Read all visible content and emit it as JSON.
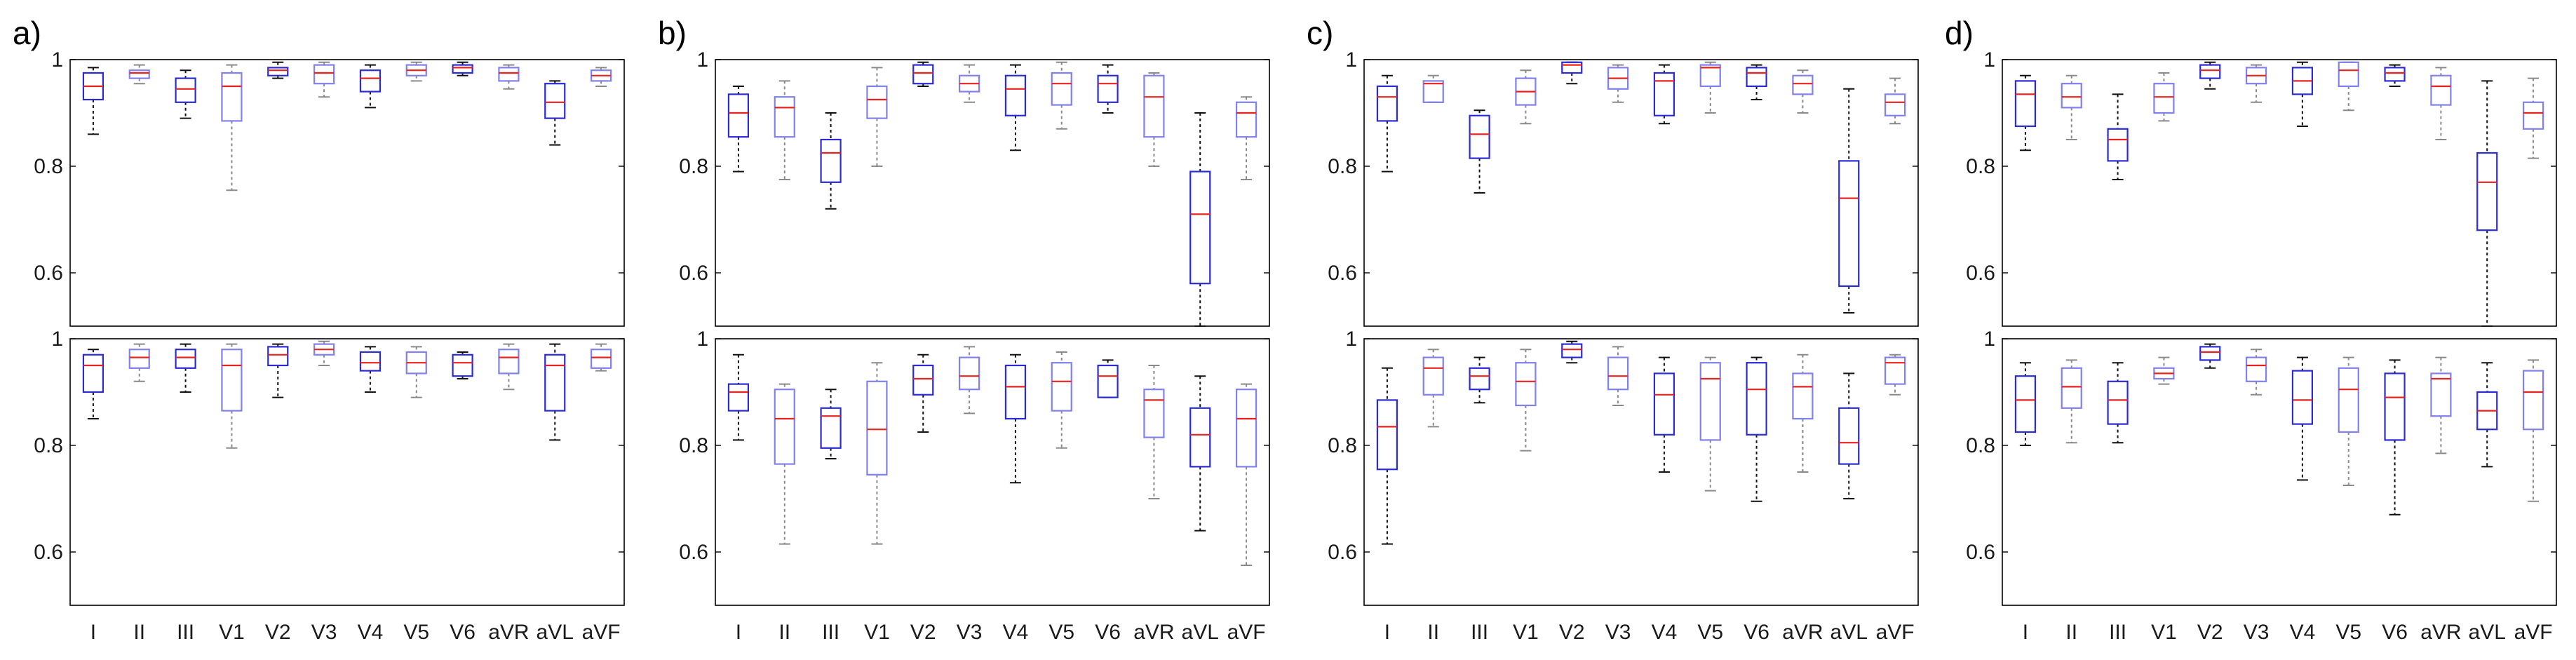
{
  "figure": {
    "categories": [
      "I",
      "II",
      "III",
      "V1",
      "V2",
      "V3",
      "V4",
      "V5",
      "V6",
      "aVR",
      "aVL",
      "aVF"
    ],
    "y_ticks": [
      0.6,
      0.8,
      1
    ],
    "y_tick_labels": [
      "0.6",
      "0.8",
      "1"
    ]
  },
  "chart_data": [
    {
      "type": "box",
      "panel_label": "a)",
      "subplot": "top",
      "categories": [
        "I",
        "II",
        "III",
        "V1",
        "V2",
        "V3",
        "V4",
        "V5",
        "V6",
        "aVR",
        "aVL",
        "aVF"
      ],
      "ylim": [
        0.5,
        1.0
      ],
      "yticks": [
        0.6,
        0.8,
        1
      ],
      "boxes": [
        {
          "min": 0.86,
          "q1": 0.925,
          "median": 0.95,
          "q3": 0.975,
          "max": 0.985
        },
        {
          "min": 0.955,
          "q1": 0.965,
          "median": 0.975,
          "q3": 0.98,
          "max": 0.99
        },
        {
          "min": 0.89,
          "q1": 0.92,
          "median": 0.945,
          "q3": 0.965,
          "max": 0.98
        },
        {
          "min": 0.755,
          "q1": 0.885,
          "median": 0.95,
          "q3": 0.975,
          "max": 0.99
        },
        {
          "min": 0.965,
          "q1": 0.97,
          "median": 0.98,
          "q3": 0.985,
          "max": 0.995
        },
        {
          "min": 0.93,
          "q1": 0.955,
          "median": 0.975,
          "q3": 0.99,
          "max": 0.995
        },
        {
          "min": 0.91,
          "q1": 0.94,
          "median": 0.965,
          "q3": 0.98,
          "max": 0.99
        },
        {
          "min": 0.96,
          "q1": 0.97,
          "median": 0.98,
          "q3": 0.99,
          "max": 0.995
        },
        {
          "min": 0.97,
          "q1": 0.975,
          "median": 0.985,
          "q3": 0.99,
          "max": 0.995
        },
        {
          "min": 0.945,
          "q1": 0.96,
          "median": 0.975,
          "q3": 0.985,
          "max": 0.99
        },
        {
          "min": 0.84,
          "q1": 0.89,
          "median": 0.92,
          "q3": 0.955,
          "max": 0.96
        },
        {
          "min": 0.95,
          "q1": 0.96,
          "median": 0.97,
          "q3": 0.98,
          "max": 0.985
        }
      ]
    },
    {
      "type": "box",
      "panel_label": "a)",
      "subplot": "bottom",
      "categories": [
        "I",
        "II",
        "III",
        "V1",
        "V2",
        "V3",
        "V4",
        "V5",
        "V6",
        "aVR",
        "aVL",
        "aVF"
      ],
      "ylim": [
        0.5,
        1.0
      ],
      "yticks": [
        0.6,
        0.8,
        1
      ],
      "boxes": [
        {
          "min": 0.85,
          "q1": 0.9,
          "median": 0.95,
          "q3": 0.97,
          "max": 0.98
        },
        {
          "min": 0.92,
          "q1": 0.945,
          "median": 0.965,
          "q3": 0.98,
          "max": 0.99
        },
        {
          "min": 0.9,
          "q1": 0.945,
          "median": 0.965,
          "q3": 0.98,
          "max": 0.99
        },
        {
          "min": 0.795,
          "q1": 0.865,
          "median": 0.95,
          "q3": 0.98,
          "max": 0.99
        },
        {
          "min": 0.89,
          "q1": 0.95,
          "median": 0.97,
          "q3": 0.985,
          "max": 0.99
        },
        {
          "min": 0.95,
          "q1": 0.97,
          "median": 0.98,
          "q3": 0.99,
          "max": 0.995
        },
        {
          "min": 0.9,
          "q1": 0.94,
          "median": 0.955,
          "q3": 0.975,
          "max": 0.985
        },
        {
          "min": 0.89,
          "q1": 0.935,
          "median": 0.955,
          "q3": 0.975,
          "max": 0.985
        },
        {
          "min": 0.925,
          "q1": 0.93,
          "median": 0.955,
          "q3": 0.97,
          "max": 0.975
        },
        {
          "min": 0.905,
          "q1": 0.935,
          "median": 0.965,
          "q3": 0.98,
          "max": 0.99
        },
        {
          "min": 0.81,
          "q1": 0.865,
          "median": 0.95,
          "q3": 0.97,
          "max": 0.99
        },
        {
          "min": 0.94,
          "q1": 0.945,
          "median": 0.965,
          "q3": 0.98,
          "max": 0.99
        }
      ]
    },
    {
      "type": "box",
      "panel_label": "b)",
      "subplot": "top",
      "categories": [
        "I",
        "II",
        "III",
        "V1",
        "V2",
        "V3",
        "V4",
        "V5",
        "V6",
        "aVR",
        "aVL",
        "aVF"
      ],
      "ylim": [
        0.5,
        1.0
      ],
      "yticks": [
        0.6,
        0.8,
        1
      ],
      "boxes": [
        {
          "min": 0.79,
          "q1": 0.855,
          "median": 0.9,
          "q3": 0.935,
          "max": 0.95
        },
        {
          "min": 0.775,
          "q1": 0.855,
          "median": 0.91,
          "q3": 0.93,
          "max": 0.96
        },
        {
          "min": 0.72,
          "q1": 0.77,
          "median": 0.825,
          "q3": 0.85,
          "max": 0.9
        },
        {
          "min": 0.8,
          "q1": 0.89,
          "median": 0.925,
          "q3": 0.95,
          "max": 0.985
        },
        {
          "min": 0.95,
          "q1": 0.955,
          "median": 0.975,
          "q3": 0.99,
          "max": 0.995
        },
        {
          "min": 0.92,
          "q1": 0.94,
          "median": 0.955,
          "q3": 0.97,
          "max": 0.99
        },
        {
          "min": 0.83,
          "q1": 0.895,
          "median": 0.945,
          "q3": 0.97,
          "max": 0.99
        },
        {
          "min": 0.87,
          "q1": 0.915,
          "median": 0.955,
          "q3": 0.975,
          "max": 0.995
        },
        {
          "min": 0.9,
          "q1": 0.92,
          "median": 0.955,
          "q3": 0.97,
          "max": 0.99
        },
        {
          "min": 0.8,
          "q1": 0.855,
          "median": 0.93,
          "q3": 0.97,
          "max": 0.975
        },
        {
          "min": 0.5,
          "q1": 0.58,
          "median": 0.71,
          "q3": 0.79,
          "max": 0.9
        },
        {
          "min": 0.775,
          "q1": 0.855,
          "median": 0.9,
          "q3": 0.92,
          "max": 0.93
        }
      ]
    },
    {
      "type": "box",
      "panel_label": "b)",
      "subplot": "bottom",
      "categories": [
        "I",
        "II",
        "III",
        "V1",
        "V2",
        "V3",
        "V4",
        "V5",
        "V6",
        "aVR",
        "aVL",
        "aVF"
      ],
      "ylim": [
        0.5,
        1.0
      ],
      "yticks": [
        0.6,
        0.8,
        1
      ],
      "boxes": [
        {
          "min": 0.81,
          "q1": 0.865,
          "median": 0.9,
          "q3": 0.915,
          "max": 0.97
        },
        {
          "min": 0.615,
          "q1": 0.765,
          "median": 0.85,
          "q3": 0.905,
          "max": 0.915
        },
        {
          "min": 0.775,
          "q1": 0.795,
          "median": 0.855,
          "q3": 0.87,
          "max": 0.905
        },
        {
          "min": 0.615,
          "q1": 0.745,
          "median": 0.83,
          "q3": 0.92,
          "max": 0.955
        },
        {
          "min": 0.825,
          "q1": 0.895,
          "median": 0.925,
          "q3": 0.95,
          "max": 0.97
        },
        {
          "min": 0.86,
          "q1": 0.905,
          "median": 0.93,
          "q3": 0.965,
          "max": 0.985
        },
        {
          "min": 0.73,
          "q1": 0.85,
          "median": 0.91,
          "q3": 0.95,
          "max": 0.97
        },
        {
          "min": 0.795,
          "q1": 0.865,
          "median": 0.92,
          "q3": 0.955,
          "max": 0.975
        },
        {
          "min": 0.89,
          "q1": 0.89,
          "median": 0.93,
          "q3": 0.95,
          "max": 0.96
        },
        {
          "min": 0.7,
          "q1": 0.815,
          "median": 0.885,
          "q3": 0.905,
          "max": 0.95
        },
        {
          "min": 0.64,
          "q1": 0.76,
          "median": 0.82,
          "q3": 0.87,
          "max": 0.93
        },
        {
          "min": 0.575,
          "q1": 0.76,
          "median": 0.85,
          "q3": 0.905,
          "max": 0.915
        }
      ]
    },
    {
      "type": "box",
      "panel_label": "c)",
      "subplot": "top",
      "categories": [
        "I",
        "II",
        "III",
        "V1",
        "V2",
        "V3",
        "V4",
        "V5",
        "V6",
        "aVR",
        "aVL",
        "aVF"
      ],
      "ylim": [
        0.5,
        1.0
      ],
      "yticks": [
        0.6,
        0.8,
        1
      ],
      "boxes": [
        {
          "min": 0.79,
          "q1": 0.885,
          "median": 0.93,
          "q3": 0.95,
          "max": 0.97
        },
        {
          "min": 0.92,
          "q1": 0.92,
          "median": 0.955,
          "q3": 0.96,
          "max": 0.97
        },
        {
          "min": 0.75,
          "q1": 0.815,
          "median": 0.86,
          "q3": 0.895,
          "max": 0.905
        },
        {
          "min": 0.88,
          "q1": 0.915,
          "median": 0.94,
          "q3": 0.965,
          "max": 0.98
        },
        {
          "min": 0.955,
          "q1": 0.975,
          "median": 0.99,
          "q3": 0.995,
          "max": 0.995
        },
        {
          "min": 0.92,
          "q1": 0.945,
          "median": 0.965,
          "q3": 0.985,
          "max": 0.99
        },
        {
          "min": 0.88,
          "q1": 0.895,
          "median": 0.96,
          "q3": 0.975,
          "max": 0.99
        },
        {
          "min": 0.9,
          "q1": 0.95,
          "median": 0.985,
          "q3": 0.99,
          "max": 0.995
        },
        {
          "min": 0.925,
          "q1": 0.95,
          "median": 0.975,
          "q3": 0.985,
          "max": 0.99
        },
        {
          "min": 0.9,
          "q1": 0.935,
          "median": 0.955,
          "q3": 0.97,
          "max": 0.98
        },
        {
          "min": 0.525,
          "q1": 0.575,
          "median": 0.74,
          "q3": 0.81,
          "max": 0.945
        },
        {
          "min": 0.88,
          "q1": 0.895,
          "median": 0.92,
          "q3": 0.935,
          "max": 0.965
        }
      ]
    },
    {
      "type": "box",
      "panel_label": "c)",
      "subplot": "bottom",
      "categories": [
        "I",
        "II",
        "III",
        "V1",
        "V2",
        "V3",
        "V4",
        "V5",
        "V6",
        "aVR",
        "aVL",
        "aVF"
      ],
      "ylim": [
        0.5,
        1.0
      ],
      "yticks": [
        0.6,
        0.8,
        1
      ],
      "boxes": [
        {
          "min": 0.615,
          "q1": 0.755,
          "median": 0.835,
          "q3": 0.885,
          "max": 0.945
        },
        {
          "min": 0.835,
          "q1": 0.895,
          "median": 0.945,
          "q3": 0.965,
          "max": 0.98
        },
        {
          "min": 0.88,
          "q1": 0.905,
          "median": 0.93,
          "q3": 0.945,
          "max": 0.965
        },
        {
          "min": 0.79,
          "q1": 0.875,
          "median": 0.92,
          "q3": 0.955,
          "max": 0.98
        },
        {
          "min": 0.955,
          "q1": 0.965,
          "median": 0.98,
          "q3": 0.99,
          "max": 0.995
        },
        {
          "min": 0.875,
          "q1": 0.905,
          "median": 0.93,
          "q3": 0.965,
          "max": 0.985
        },
        {
          "min": 0.75,
          "q1": 0.82,
          "median": 0.895,
          "q3": 0.935,
          "max": 0.965
        },
        {
          "min": 0.715,
          "q1": 0.81,
          "median": 0.925,
          "q3": 0.955,
          "max": 0.965
        },
        {
          "min": 0.695,
          "q1": 0.82,
          "median": 0.905,
          "q3": 0.955,
          "max": 0.965
        },
        {
          "min": 0.75,
          "q1": 0.85,
          "median": 0.91,
          "q3": 0.935,
          "max": 0.97
        },
        {
          "min": 0.7,
          "q1": 0.765,
          "median": 0.805,
          "q3": 0.87,
          "max": 0.935
        },
        {
          "min": 0.895,
          "q1": 0.915,
          "median": 0.955,
          "q3": 0.965,
          "max": 0.97
        }
      ]
    },
    {
      "type": "box",
      "panel_label": "d)",
      "subplot": "top",
      "categories": [
        "I",
        "II",
        "III",
        "V1",
        "V2",
        "V3",
        "V4",
        "V5",
        "V6",
        "aVR",
        "aVL",
        "aVF"
      ],
      "ylim": [
        0.5,
        1.0
      ],
      "yticks": [
        0.6,
        0.8,
        1
      ],
      "boxes": [
        {
          "min": 0.83,
          "q1": 0.875,
          "median": 0.935,
          "q3": 0.96,
          "max": 0.97
        },
        {
          "min": 0.85,
          "q1": 0.91,
          "median": 0.93,
          "q3": 0.955,
          "max": 0.97
        },
        {
          "min": 0.775,
          "q1": 0.81,
          "median": 0.85,
          "q3": 0.87,
          "max": 0.935
        },
        {
          "min": 0.885,
          "q1": 0.9,
          "median": 0.93,
          "q3": 0.955,
          "max": 0.975
        },
        {
          "min": 0.945,
          "q1": 0.965,
          "median": 0.98,
          "q3": 0.99,
          "max": 0.995
        },
        {
          "min": 0.92,
          "q1": 0.955,
          "median": 0.97,
          "q3": 0.985,
          "max": 0.99
        },
        {
          "min": 0.875,
          "q1": 0.935,
          "median": 0.96,
          "q3": 0.985,
          "max": 0.995
        },
        {
          "min": 0.905,
          "q1": 0.95,
          "median": 0.98,
          "q3": 0.995,
          "max": 0.995
        },
        {
          "min": 0.95,
          "q1": 0.96,
          "median": 0.975,
          "q3": 0.985,
          "max": 0.99
        },
        {
          "min": 0.85,
          "q1": 0.915,
          "median": 0.95,
          "q3": 0.97,
          "max": 0.985
        },
        {
          "min": 0.5,
          "q1": 0.68,
          "median": 0.77,
          "q3": 0.825,
          "max": 0.96
        },
        {
          "min": 0.815,
          "q1": 0.87,
          "median": 0.9,
          "q3": 0.92,
          "max": 0.965
        }
      ]
    },
    {
      "type": "box",
      "panel_label": "d)",
      "subplot": "bottom",
      "categories": [
        "I",
        "II",
        "III",
        "V1",
        "V2",
        "V3",
        "V4",
        "V5",
        "V6",
        "aVR",
        "aVL",
        "aVF"
      ],
      "ylim": [
        0.5,
        1.0
      ],
      "yticks": [
        0.6,
        0.8,
        1
      ],
      "boxes": [
        {
          "min": 0.8,
          "q1": 0.825,
          "median": 0.885,
          "q3": 0.93,
          "max": 0.955
        },
        {
          "min": 0.805,
          "q1": 0.87,
          "median": 0.91,
          "q3": 0.945,
          "max": 0.96
        },
        {
          "min": 0.805,
          "q1": 0.84,
          "median": 0.885,
          "q3": 0.92,
          "max": 0.955
        },
        {
          "min": 0.915,
          "q1": 0.925,
          "median": 0.935,
          "q3": 0.945,
          "max": 0.965
        },
        {
          "min": 0.945,
          "q1": 0.96,
          "median": 0.975,
          "q3": 0.985,
          "max": 0.99
        },
        {
          "min": 0.895,
          "q1": 0.92,
          "median": 0.95,
          "q3": 0.965,
          "max": 0.98
        },
        {
          "min": 0.735,
          "q1": 0.84,
          "median": 0.885,
          "q3": 0.94,
          "max": 0.965
        },
        {
          "min": 0.725,
          "q1": 0.825,
          "median": 0.905,
          "q3": 0.945,
          "max": 0.965
        },
        {
          "min": 0.67,
          "q1": 0.81,
          "median": 0.89,
          "q3": 0.935,
          "max": 0.96
        },
        {
          "min": 0.785,
          "q1": 0.855,
          "median": 0.925,
          "q3": 0.935,
          "max": 0.965
        },
        {
          "min": 0.76,
          "q1": 0.83,
          "median": 0.865,
          "q3": 0.9,
          "max": 0.955
        },
        {
          "min": 0.695,
          "q1": 0.83,
          "median": 0.9,
          "q3": 0.94,
          "max": 0.96
        }
      ]
    }
  ]
}
